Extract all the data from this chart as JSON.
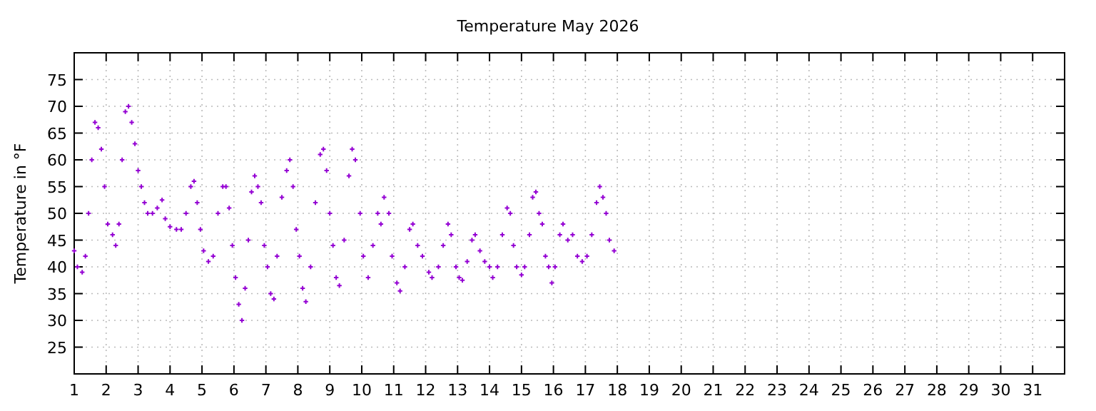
{
  "chart_data": {
    "type": "scatter",
    "title": "Temperature May 2026",
    "ylabel": "Temperature in °F",
    "x": [
      1.0,
      1.1,
      1.25,
      1.35,
      1.45,
      1.55,
      1.65,
      1.75,
      1.85,
      1.95,
      2.05,
      2.2,
      2.3,
      2.4,
      2.5,
      2.6,
      2.7,
      2.8,
      2.9,
      3.0,
      3.1,
      3.2,
      3.3,
      3.45,
      3.6,
      3.75,
      3.85,
      4.0,
      4.2,
      4.35,
      4.5,
      4.65,
      4.75,
      4.85,
      4.95,
      5.05,
      5.2,
      5.35,
      5.5,
      5.65,
      5.75,
      5.85,
      5.95,
      6.05,
      6.15,
      6.25,
      6.35,
      6.45,
      6.55,
      6.65,
      6.75,
      6.85,
      6.95,
      7.05,
      7.15,
      7.25,
      7.35,
      7.5,
      7.65,
      7.75,
      7.85,
      7.95,
      8.05,
      8.15,
      8.25,
      8.4,
      8.55,
      8.7,
      8.8,
      8.9,
      9.0,
      9.1,
      9.2,
      9.3,
      9.45,
      9.6,
      9.7,
      9.8,
      9.95,
      10.05,
      10.2,
      10.35,
      10.5,
      10.6,
      10.7,
      10.85,
      10.95,
      11.1,
      11.2,
      11.35,
      11.5,
      11.6,
      11.75,
      11.9,
      12.1,
      12.2,
      12.4,
      12.55,
      12.7,
      12.8,
      12.95,
      13.05,
      13.15,
      13.3,
      13.45,
      13.55,
      13.7,
      13.85,
      14.0,
      14.1,
      14.25,
      14.4,
      14.55,
      14.65,
      14.75,
      14.85,
      15.0,
      15.1,
      15.25,
      15.35,
      15.45,
      15.55,
      15.65,
      15.75,
      15.85,
      15.95,
      16.05,
      16.2,
      16.3,
      16.45,
      16.6,
      16.75,
      16.9,
      17.05,
      17.2,
      17.35,
      17.45,
      17.55,
      17.65,
      17.75,
      17.9
    ],
    "values": [
      43,
      40,
      39,
      42,
      50,
      60,
      67,
      66,
      62,
      55,
      48,
      46,
      44,
      48,
      60,
      69,
      70,
      67,
      63,
      58,
      55,
      52,
      50,
      50,
      51,
      52.5,
      49,
      47.5,
      47,
      47,
      50,
      55,
      56,
      52,
      47,
      43,
      41,
      42,
      50,
      55,
      55,
      51,
      44,
      38,
      33,
      30,
      36,
      45,
      54,
      57,
      55,
      52,
      44,
      40,
      35,
      34,
      42,
      53,
      58,
      60,
      55,
      47,
      42,
      36,
      33.5,
      40,
      52,
      61,
      62,
      58,
      50,
      44,
      38,
      36.5,
      45,
      57,
      62,
      60,
      50,
      42,
      38,
      44,
      50,
      48,
      53,
      50,
      42,
      37,
      35.5,
      40,
      47,
      48,
      44,
      42,
      39,
      38,
      40,
      44,
      48,
      46,
      40,
      38,
      37.5,
      41,
      45,
      46,
      43,
      41,
      40,
      38,
      40,
      46,
      51,
      50,
      44,
      40,
      38.5,
      40,
      46,
      53,
      54,
      50,
      48,
      42,
      40,
      37,
      40,
      46,
      48,
      45,
      46,
      42,
      41,
      42,
      46,
      52,
      55,
      53,
      50,
      45,
      43
    ],
    "color": "#9400d3",
    "marker": "cross",
    "xlim": [
      1,
      32
    ],
    "xticks": [
      1,
      2,
      3,
      4,
      5,
      6,
      7,
      8,
      9,
      10,
      11,
      12,
      13,
      14,
      15,
      16,
      17,
      18,
      19,
      20,
      21,
      22,
      23,
      24,
      25,
      26,
      27,
      28,
      29,
      30,
      31
    ],
    "ylim": [
      20,
      80
    ],
    "yticks": [
      25,
      30,
      35,
      40,
      45,
      50,
      55,
      60,
      65,
      70,
      75
    ],
    "grid": true
  }
}
